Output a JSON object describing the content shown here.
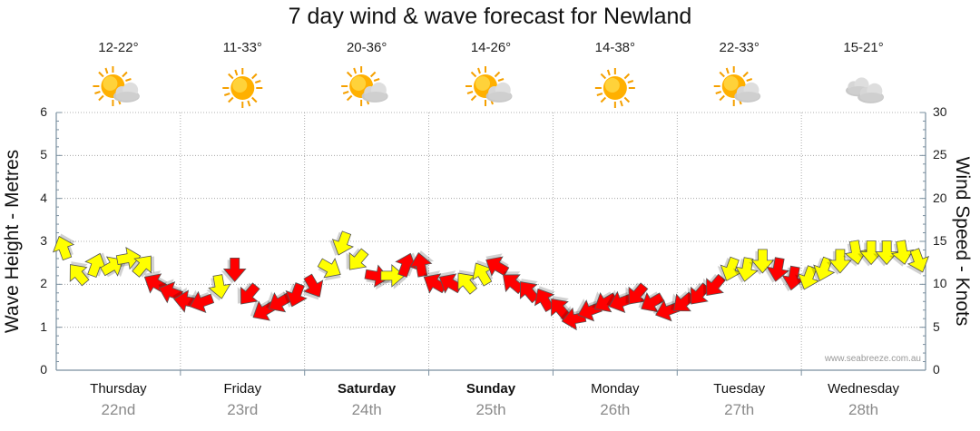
{
  "title": "7 day wind & wave forecast for Newland",
  "left_axis_label": "Wave Height - Metres",
  "right_axis_label": "Wind Speed - Knots",
  "credit": "www.seabreeze.com.au",
  "colors": {
    "strong": "#ff0000",
    "moderate": "#ffff00",
    "outline": "#555555",
    "grid": "#999999",
    "axis": "#7a8f9f"
  },
  "chart_data": {
    "type": "line",
    "title": "7 day wind & wave forecast for Newland",
    "ylabel": "Wave Height - Metres",
    "y2label": "Wind Speed - Knots",
    "ylim": [
      0,
      6
    ],
    "y2lim": [
      0,
      30
    ],
    "yticks": [
      "0",
      "1",
      "2",
      "3",
      "4",
      "5",
      "6"
    ],
    "y2ticks": [
      "0",
      "5",
      "10",
      "15",
      "20",
      "25",
      "30"
    ],
    "grid": true,
    "days": [
      {
        "name": "Thursday",
        "date": "22nd",
        "temp": "12-22°",
        "icon": "sun-cloud-icon",
        "bold": false
      },
      {
        "name": "Friday",
        "date": "23rd",
        "temp": "11-33°",
        "icon": "sun-icon",
        "bold": false
      },
      {
        "name": "Saturday",
        "date": "24th",
        "temp": "20-36°",
        "icon": "sun-cloud-icon",
        "bold": true
      },
      {
        "name": "Sunday",
        "date": "25th",
        "temp": "14-26°",
        "icon": "sun-cloud-icon",
        "bold": true
      },
      {
        "name": "Monday",
        "date": "26th",
        "temp": "14-38°",
        "icon": "sun-icon",
        "bold": false
      },
      {
        "name": "Tuesday",
        "date": "27th",
        "temp": "22-33°",
        "icon": "sun-cloud-icon",
        "bold": false
      },
      {
        "name": "Wednesday",
        "date": "28th",
        "temp": "15-21°",
        "icon": "cloud-icon",
        "bold": false
      }
    ],
    "series": [
      {
        "type": "wind-arrows",
        "x_hours": [
          0,
          3,
          6,
          9,
          12,
          15,
          18,
          21,
          24,
          27,
          30,
          33,
          36,
          39,
          42,
          45,
          48,
          51,
          54,
          57,
          60,
          63,
          66,
          69,
          72,
          75,
          78,
          81,
          84,
          87,
          90,
          93,
          96,
          99,
          102,
          105,
          108,
          111,
          114,
          117,
          120,
          123,
          126,
          129,
          132,
          135,
          138,
          141,
          144,
          147,
          150,
          153,
          156,
          159,
          162,
          165
        ],
        "speed_knots": [
          14,
          11,
          12,
          12,
          13,
          12,
          10,
          9,
          8,
          8,
          10,
          12,
          9,
          7,
          8,
          9,
          10,
          12,
          15,
          13,
          11,
          11,
          12,
          12,
          10,
          10,
          10,
          11,
          12,
          10,
          9,
          8,
          7,
          6,
          7,
          8,
          8,
          9,
          8,
          7,
          8,
          9,
          10,
          12,
          12,
          13,
          12,
          11,
          11,
          12,
          13,
          14,
          14,
          14,
          14,
          13
        ],
        "direction_deg": [
          340,
          320,
          20,
          60,
          80,
          40,
          300,
          290,
          280,
          250,
          170,
          180,
          220,
          240,
          240,
          200,
          150,
          120,
          200,
          220,
          100,
          90,
          20,
          350,
          300,
          300,
          320,
          330,
          300,
          310,
          320,
          330,
          320,
          260,
          250,
          240,
          250,
          220,
          240,
          250,
          230,
          220,
          220,
          200,
          190,
          180,
          190,
          190,
          200,
          200,
          180,
          170,
          180,
          180,
          170,
          160
        ],
        "category": [
          "moderate",
          "moderate",
          "moderate",
          "moderate",
          "moderate",
          "moderate",
          "strong",
          "strong",
          "strong",
          "strong",
          "moderate",
          "strong",
          "strong",
          "strong",
          "strong",
          "strong",
          "strong",
          "moderate",
          "moderate",
          "moderate",
          "strong",
          "moderate",
          "strong",
          "strong",
          "strong",
          "strong",
          "moderate",
          "moderate",
          "strong",
          "strong",
          "strong",
          "strong",
          "strong",
          "strong",
          "strong",
          "strong",
          "strong",
          "strong",
          "strong",
          "strong",
          "strong",
          "strong",
          "strong",
          "moderate",
          "moderate",
          "moderate",
          "strong",
          "strong",
          "moderate",
          "moderate",
          "moderate",
          "moderate",
          "moderate",
          "moderate",
          "moderate",
          "moderate"
        ]
      }
    ]
  }
}
